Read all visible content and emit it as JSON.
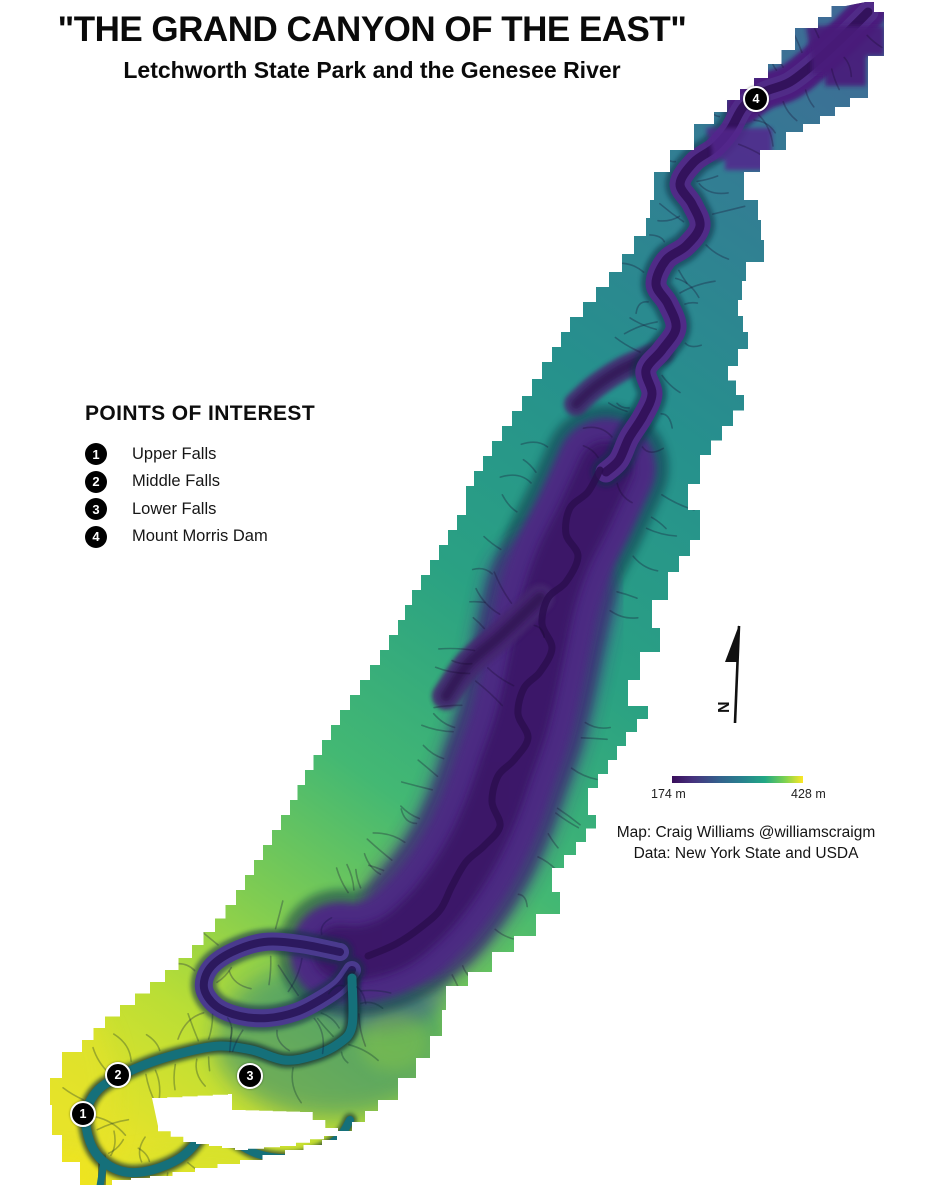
{
  "header": {
    "title": "\"THE GRAND CANYON OF THE EAST\"",
    "subtitle": "Letchworth State Park and the Genesee River"
  },
  "poi": {
    "heading": "POINTS OF INTEREST",
    "items": [
      {
        "number": "1",
        "label": "Upper Falls"
      },
      {
        "number": "2",
        "label": "Middle Falls"
      },
      {
        "number": "3",
        "label": "Lower Falls"
      },
      {
        "number": "4",
        "label": "Mount Morris Dam"
      }
    ]
  },
  "map": {
    "markers": [
      {
        "number": "1"
      },
      {
        "number": "2"
      },
      {
        "number": "3"
      },
      {
        "number": "4"
      }
    ]
  },
  "north": {
    "label": "N"
  },
  "scalebar": {
    "min_label": "174 m",
    "max_label": "428 m",
    "min_color": "#3a0d5b",
    "max_color": "#fde725"
  },
  "credits": {
    "line1": "Map: Craig Williams @williamscraigm",
    "line2": "Data: New York State and USDA"
  }
}
